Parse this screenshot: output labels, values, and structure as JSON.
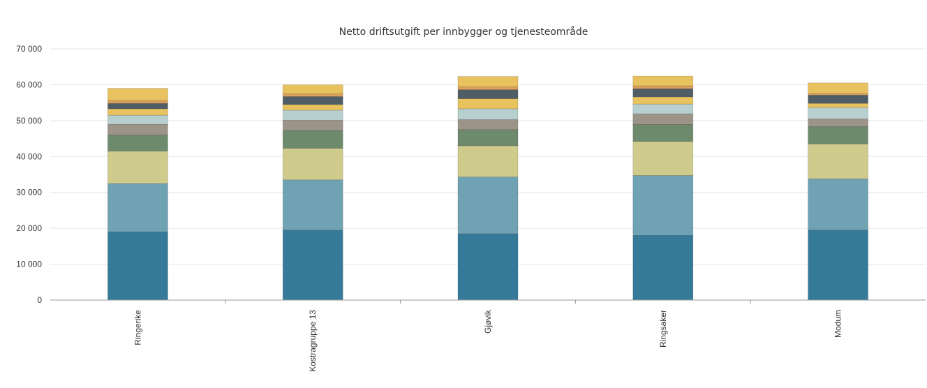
{
  "chart_data": {
    "type": "bar",
    "stacked": true,
    "title": "Netto driftsutgift per innbygger og tjenesteområde",
    "xlabel": "",
    "ylabel": "",
    "ylim": [
      0,
      70000
    ],
    "yticks": [
      0,
      10000,
      20000,
      30000,
      40000,
      50000,
      60000,
      70000
    ],
    "ytick_labels": [
      "0",
      "10 000",
      "20 000",
      "30 000",
      "40 000",
      "50 000",
      "60 000",
      "70 000"
    ],
    "grid": true,
    "legend": "none",
    "categories": [
      "Ringerike",
      "Kostragruppe 13",
      "Gjøvik",
      "Ringsaker",
      "Modum"
    ],
    "series": [
      {
        "color": "#357a99",
        "values": [
          19000,
          19500,
          18500,
          18000,
          19500
        ]
      },
      {
        "color": "#6fa2b3",
        "values": [
          13500,
          14000,
          15800,
          16700,
          14300
        ]
      },
      {
        "color": "#cfcb8d",
        "values": [
          9000,
          8800,
          8700,
          9500,
          9700
        ]
      },
      {
        "color": "#6e8a6d",
        "values": [
          4500,
          5000,
          4500,
          4700,
          4800
        ]
      },
      {
        "color": "#9c9488",
        "values": [
          3000,
          2800,
          2800,
          3000,
          2200
        ]
      },
      {
        "color": "#b8cfcf",
        "values": [
          2500,
          2800,
          3000,
          2700,
          3100
        ]
      },
      {
        "color": "#e8c25e",
        "values": [
          1800,
          1600,
          2800,
          2000,
          1200
        ]
      },
      {
        "color": "#4f5e66",
        "values": [
          1500,
          2200,
          2500,
          2300,
          2300
        ]
      },
      {
        "color": "#dba05c",
        "values": [
          800,
          800,
          800,
          800,
          500
        ]
      },
      {
        "color": "#e8c25e",
        "values": [
          3400,
          2500,
          2900,
          2700,
          2900
        ]
      }
    ]
  }
}
